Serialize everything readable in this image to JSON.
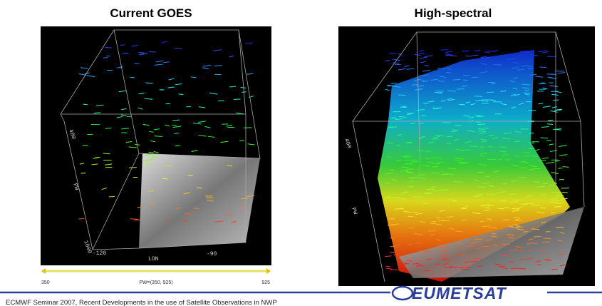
{
  "slide": {
    "titles": [
      "Current GOES",
      "High-spectral"
    ],
    "left_image": {
      "axis_labels": {
        "top": "400",
        "pw": "PW",
        "bottom": "1000",
        "lon_min": "-120",
        "lon": "LON",
        "lon_max": "-90"
      },
      "legend": {
        "min": "350",
        "max": "925",
        "caption": "PW=(350, 925)"
      }
    },
    "right_image": {
      "axis_labels": {
        "top": "400",
        "pw": "PW"
      }
    }
  },
  "footer": {
    "text": "ECMWF Seminar 2007, Recent Developments in the use of Satellite Observations in NWP",
    "logo": "EUMETSAT"
  }
}
